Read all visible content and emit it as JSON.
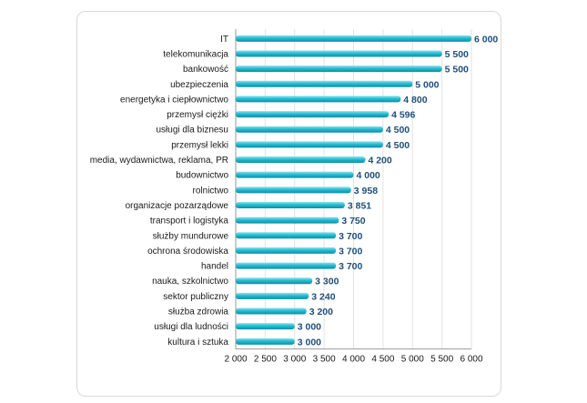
{
  "chart_data": {
    "type": "bar",
    "orientation": "horizontal",
    "categories": [
      "IT",
      "telekomunikacja",
      "bankowość",
      "ubezpieczenia",
      "energetyka i ciepłownictwo",
      "przemysł ciężki",
      "usługi dla biznesu",
      "przemysł lekki",
      "media, wydawnictwa, reklama, PR",
      "budownictwo",
      "rolnictwo",
      "organizacje pozarządowe",
      "transport i logistyka",
      "służby mundurowe",
      "ochrona środowiska",
      "handel",
      "nauka, szkolnictwo",
      "sektor publiczny",
      "służba zdrowia",
      "usługi dla ludności",
      "kultura i sztuka"
    ],
    "values": [
      6000,
      5500,
      5500,
      5000,
      4800,
      4596,
      4500,
      4500,
      4200,
      4000,
      3958,
      3851,
      3750,
      3700,
      3700,
      3700,
      3300,
      3240,
      3200,
      3000,
      3000
    ],
    "value_labels": [
      "6 000",
      "5 500",
      "5 500",
      "5 000",
      "4 800",
      "4 596",
      "4 500",
      "4 500",
      "4 200",
      "4 000",
      "3 958",
      "3 851",
      "3 750",
      "3 700",
      "3 700",
      "3 700",
      "3 300",
      "3 240",
      "3 200",
      "3 000",
      "3 000"
    ],
    "xlim": [
      2000,
      6000
    ],
    "x_ticks": [
      2000,
      2500,
      3000,
      3500,
      4000,
      4500,
      5000,
      5500,
      6000
    ],
    "x_tick_labels": [
      "2 000",
      "2 500",
      "3 000",
      "3 500",
      "4 000",
      "4 500",
      "5 000",
      "5 500",
      "6 000"
    ],
    "grid": "vertical",
    "legend": "none",
    "colors": {
      "bar": "#23bcd3",
      "bar_light": "#8ee3ef",
      "bar_dark": "#0f8ea3",
      "value_label": "#1f4e79"
    }
  }
}
